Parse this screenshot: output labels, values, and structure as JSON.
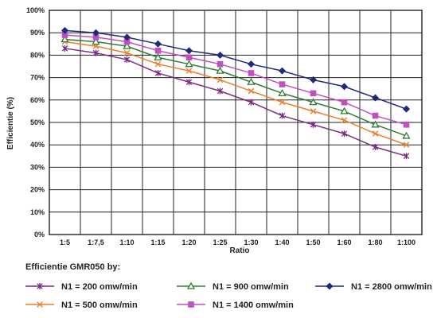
{
  "chart_data": {
    "type": "line",
    "xlabel": "Ratio",
    "ylabel": "Efficientie (%)",
    "categories": [
      "1:5",
      "1:7,5",
      "1:10",
      "1:15",
      "1:20",
      "1:25",
      "1:30",
      "1:40",
      "1:50",
      "1:60",
      "1:80",
      "1:100"
    ],
    "ylim": [
      0,
      100
    ],
    "y_ticks": [
      "0%",
      "10%",
      "20%",
      "30%",
      "40%",
      "50%",
      "60%",
      "70%",
      "80%",
      "90%",
      "100%"
    ],
    "grid": true,
    "legend_title": "Efficientie GMR050 by:",
    "legend_position": "bottom",
    "series": [
      {
        "name": "N1 = 200 omw/min",
        "color": "#7b2c83",
        "marker": "star",
        "values": [
          83,
          81,
          78,
          72,
          68,
          64,
          59,
          53,
          49,
          45,
          39,
          35
        ]
      },
      {
        "name": "N1 = 500 omw/min",
        "color": "#f07d2b",
        "marker": "x",
        "values": [
          86,
          84,
          81,
          76,
          73,
          69,
          64,
          59,
          55,
          51,
          45,
          40
        ]
      },
      {
        "name": "N1 = 900 omw/min",
        "color": "#2e7d32",
        "marker": "triangle",
        "values": [
          87,
          86,
          84,
          79,
          76,
          73,
          68,
          63,
          59,
          55,
          49,
          44
        ]
      },
      {
        "name": "N1 = 1400 omw/min",
        "color": "#c050c0",
        "marker": "square",
        "values": [
          89,
          88,
          86,
          82,
          79,
          76,
          72,
          67,
          63,
          59,
          53,
          49
        ]
      },
      {
        "name": "N1 = 2800 omw/min",
        "color": "#1f2a78",
        "marker": "diamond",
        "values": [
          91,
          90,
          88,
          85,
          82,
          80,
          76,
          73,
          69,
          66,
          61,
          56
        ]
      }
    ]
  }
}
